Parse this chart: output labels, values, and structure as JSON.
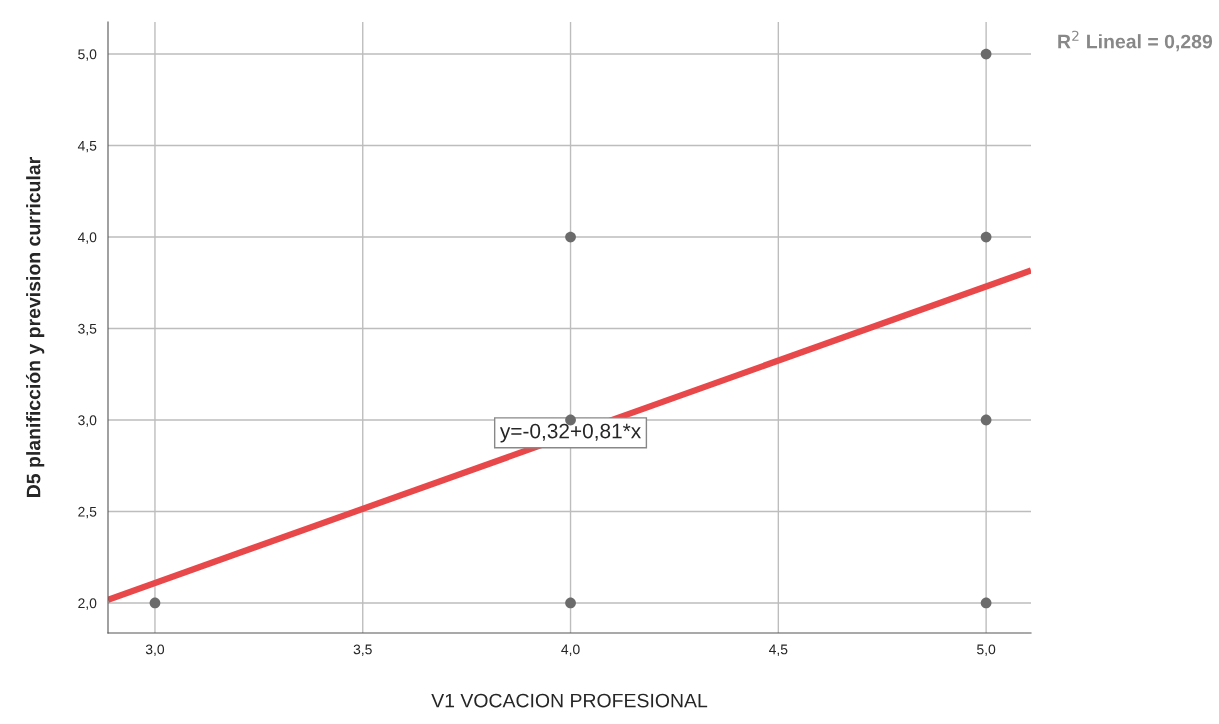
{
  "chart_data": {
    "type": "scatter",
    "xlabel": "V1 VOCACION PROFESIONAL",
    "ylabel": "D5 planificción y prevision curricular",
    "series": [
      {
        "marker": "circle",
        "color": "#6b6b6b",
        "x": [
          3,
          4,
          4,
          4,
          5,
          5,
          5,
          5
        ],
        "values": [
          2,
          2,
          3,
          4,
          2,
          3,
          4,
          5
        ]
      },
      {
        "type": "line",
        "color": "#e8484a",
        "x": [
          2.887,
          5.108
        ],
        "values": [
          2.018,
          3.817
        ]
      }
    ],
    "xlim": [
      2.887,
      5.108
    ],
    "ylim": [
      1.836,
      5.175
    ],
    "xticks": [
      {
        "value": 3,
        "label": "3,0"
      },
      {
        "value": 3.5,
        "label": "3,5"
      },
      {
        "value": 4,
        "label": "4,0"
      },
      {
        "value": 4.5,
        "label": "4,5"
      },
      {
        "value": 5,
        "label": "5,0"
      }
    ],
    "yticks": [
      {
        "value": 2,
        "label": "2,0"
      },
      {
        "value": 2.5,
        "label": "2,5"
      },
      {
        "value": 3,
        "label": "3,0"
      },
      {
        "value": 3.5,
        "label": "3,5"
      },
      {
        "value": 4,
        "label": "4,0"
      },
      {
        "value": 4.5,
        "label": "4,5"
      },
      {
        "value": 5,
        "label": "5,0"
      }
    ],
    "grid": true,
    "annotations": [
      {
        "text": "y=-0,32+0,81*x",
        "x": 4.0,
        "y": 2.93
      },
      "R$^{2}$ Lineal = 0,289"
    ]
  }
}
